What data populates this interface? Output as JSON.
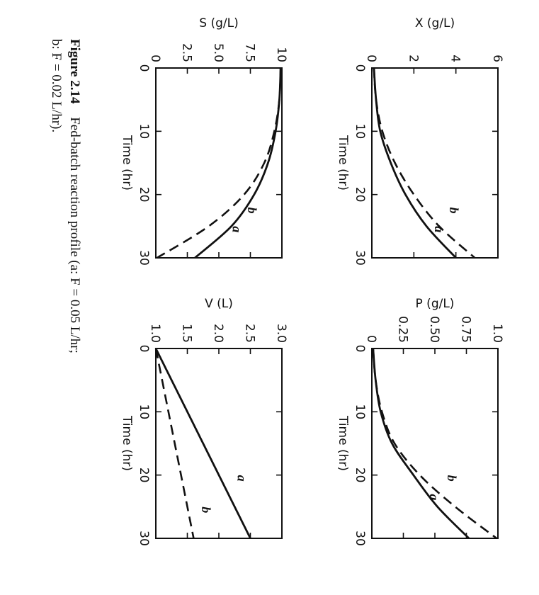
{
  "caption": {
    "label": "Figure 2.14",
    "line1": "Fed-batch reaction profile (a: F = 0.05 L/hr;",
    "line2": "b: F = 0.02 L/hr)."
  },
  "colors": {
    "ink": "#111111",
    "background": "#ffffff"
  },
  "chart_data": [
    {
      "type": "line",
      "id": "X",
      "xlabel": "Time (hr)",
      "ylabel": "X (g/L)",
      "xlim": [
        0,
        30
      ],
      "ylim": [
        0,
        6
      ],
      "xticks": [
        0,
        10,
        20,
        30
      ],
      "xtick_labels": [
        "0",
        "10",
        "20",
        "30"
      ],
      "yticks": [
        0,
        2,
        4,
        6
      ],
      "ytick_labels": [
        "0",
        "2",
        "4",
        "6"
      ],
      "x": [
        0,
        5,
        10,
        15,
        20,
        25,
        30
      ],
      "series": [
        {
          "name": "a",
          "style": "solid",
          "label": "a",
          "label_at": [
            25.5,
            3.0
          ],
          "values": [
            0.1,
            0.2,
            0.4,
            0.9,
            1.6,
            2.6,
            4.0
          ]
        },
        {
          "name": "b",
          "style": "dashed",
          "label": "b",
          "label_at": [
            22.5,
            3.7
          ],
          "values": [
            0.1,
            0.2,
            0.5,
            1.1,
            2.0,
            3.2,
            4.9
          ]
        }
      ]
    },
    {
      "type": "line",
      "id": "P",
      "xlabel": "Time (hr)",
      "ylabel": "P (g/L)",
      "xlim": [
        0,
        30
      ],
      "ylim": [
        0,
        1.0
      ],
      "xticks": [
        0,
        10,
        20,
        30
      ],
      "xtick_labels": [
        "0",
        "10",
        "20",
        "30"
      ],
      "yticks": [
        0,
        0.25,
        0.5,
        0.75,
        1.0
      ],
      "ytick_labels": [
        "0",
        "0.25",
        "0.50",
        "0.75",
        "1.0"
      ],
      "x": [
        0,
        5,
        10,
        15,
        20,
        25,
        30
      ],
      "series": [
        {
          "name": "a",
          "style": "solid",
          "label": "a",
          "label_at": [
            23.5,
            0.46
          ],
          "values": [
            0.01,
            0.03,
            0.07,
            0.16,
            0.33,
            0.52,
            0.77
          ]
        },
        {
          "name": "b",
          "style": "dashed",
          "label": "b",
          "label_at": [
            20.5,
            0.6
          ],
          "values": [
            0.01,
            0.03,
            0.08,
            0.18,
            0.38,
            0.66,
            0.99
          ]
        }
      ]
    },
    {
      "type": "line",
      "id": "S",
      "xlabel": "Time (hr)",
      "ylabel": "S (g/L)",
      "xlim": [
        0,
        30
      ],
      "ylim": [
        0,
        10
      ],
      "xticks": [
        0,
        10,
        20,
        30
      ],
      "xtick_labels": [
        "0",
        "10",
        "20",
        "30"
      ],
      "yticks": [
        0,
        2.5,
        5.0,
        7.5,
        10
      ],
      "ytick_labels": [
        "0",
        "2.5",
        "5.0",
        "7.5",
        "10"
      ],
      "x": [
        0,
        5,
        10,
        15,
        20,
        25,
        30
      ],
      "series": [
        {
          "name": "a",
          "style": "solid",
          "label": "a",
          "label_at": [
            25.5,
            6.1
          ],
          "values": [
            9.9,
            9.8,
            9.5,
            8.9,
            7.8,
            6.0,
            3.1
          ]
        },
        {
          "name": "b",
          "style": "dashed",
          "label": "b",
          "label_at": [
            22.5,
            7.3
          ],
          "values": [
            9.9,
            9.8,
            9.4,
            8.6,
            7.0,
            4.2,
            0.1
          ]
        }
      ]
    },
    {
      "type": "line",
      "id": "V",
      "xlabel": "Time (hr)",
      "ylabel": "V (L)",
      "xlim": [
        0,
        30
      ],
      "ylim": [
        1.0,
        3.0
      ],
      "xticks": [
        0,
        10,
        20,
        30
      ],
      "xtick_labels": [
        "0",
        "10",
        "20",
        "30"
      ],
      "yticks": [
        1.0,
        1.5,
        2.0,
        2.5,
        3.0
      ],
      "ytick_labels": [
        "1.0",
        "1.5",
        "2.0",
        "2.5",
        "3.0"
      ],
      "x": [
        0,
        30
      ],
      "series": [
        {
          "name": "a",
          "style": "solid",
          "label": "a",
          "label_at": [
            20.5,
            2.3
          ],
          "values": [
            1.0,
            2.5
          ]
        },
        {
          "name": "b",
          "style": "dashed",
          "label": "b",
          "label_at": [
            25.5,
            1.73
          ],
          "values": [
            1.0,
            1.6
          ]
        }
      ]
    }
  ]
}
